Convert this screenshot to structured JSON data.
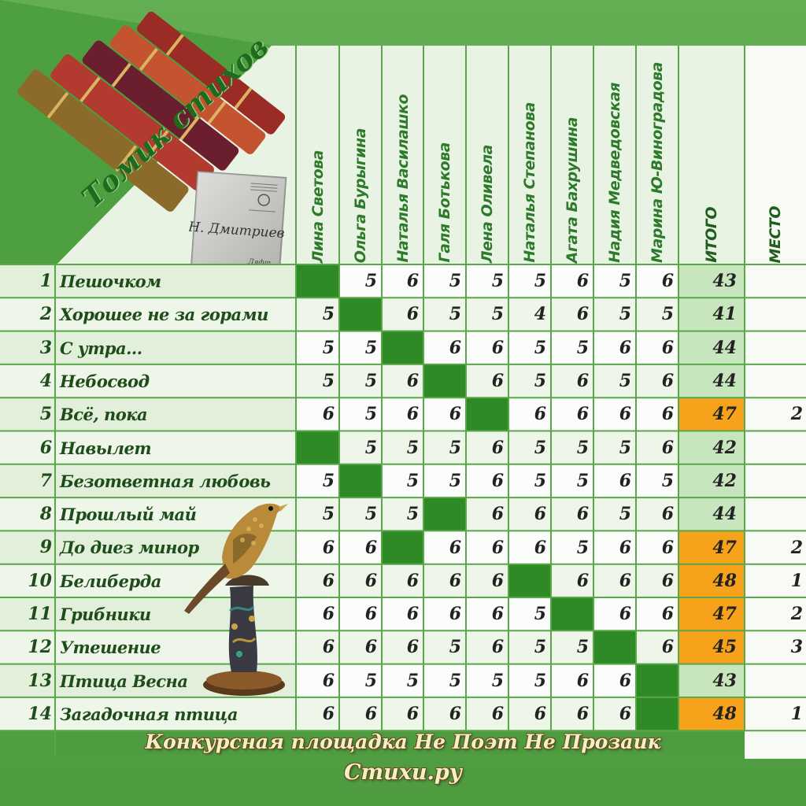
{
  "title": "Томик стихов",
  "book": {
    "author_signature": "Н. Дмитриев",
    "subtitle": "Ляфт"
  },
  "judges": [
    "Лина Светова",
    "Ольга Бурыгина",
    "Наталья Василашко",
    "Галя Ботькова",
    "Лена Оливела",
    "Наталья Степанова",
    "Агата Бахрушина",
    "Надия Медведовская",
    "Марина Ю-Виноградова"
  ],
  "total_header": "ИТОГО",
  "place_header": "МЕСТО",
  "rows": [
    {
      "n": "1",
      "title": "Пешочком",
      "scores": [
        null,
        "5",
        "6",
        "5",
        "5",
        "5",
        "6",
        "5",
        "6"
      ],
      "total": "43",
      "place": ""
    },
    {
      "n": "2",
      "title": "Хорошее не за горами",
      "scores": [
        "5",
        null,
        "6",
        "5",
        "5",
        "4",
        "6",
        "5",
        "5"
      ],
      "total": "41",
      "place": ""
    },
    {
      "n": "3",
      "title": "С утра...",
      "scores": [
        "5",
        "5",
        null,
        "6",
        "6",
        "5",
        "5",
        "6",
        "6"
      ],
      "total": "44",
      "place": ""
    },
    {
      "n": "4",
      "title": "Небосвод",
      "scores": [
        "5",
        "5",
        "6",
        null,
        "6",
        "5",
        "6",
        "5",
        "6"
      ],
      "total": "44",
      "place": ""
    },
    {
      "n": "5",
      "title": "Всё, пока",
      "scores": [
        "6",
        "5",
        "6",
        "6",
        null,
        "6",
        "6",
        "6",
        "6"
      ],
      "total": "47",
      "place": "2"
    },
    {
      "n": "6",
      "title": "Навылет",
      "scores": [
        null,
        "5",
        "5",
        "5",
        "6",
        "5",
        "5",
        "5",
        "6"
      ],
      "total": "42",
      "place": ""
    },
    {
      "n": "7",
      "title": "Безответная любовь",
      "scores": [
        "5",
        null,
        "5",
        "5",
        "6",
        "5",
        "5",
        "6",
        "5"
      ],
      "total": "42",
      "place": ""
    },
    {
      "n": "8",
      "title": "Прошлый май",
      "scores": [
        "5",
        "5",
        "5",
        null,
        "6",
        "6",
        "6",
        "5",
        "6"
      ],
      "total": "44",
      "place": ""
    },
    {
      "n": "9",
      "title": "До диез минор",
      "scores": [
        "6",
        "6",
        null,
        "6",
        "6",
        "6",
        "5",
        "6",
        "6"
      ],
      "total": "47",
      "place": "2"
    },
    {
      "n": "10",
      "title": "Белиберда",
      "scores": [
        "6",
        "6",
        "6",
        "6",
        "6",
        null,
        "6",
        "6",
        "6"
      ],
      "total": "48",
      "place": "1"
    },
    {
      "n": "11",
      "title": "Грибники",
      "scores": [
        "6",
        "6",
        "6",
        "6",
        "6",
        "5",
        null,
        "6",
        "6"
      ],
      "total": "47",
      "place": "2"
    },
    {
      "n": "12",
      "title": "Утешение",
      "scores": [
        "6",
        "6",
        "6",
        "5",
        "6",
        "5",
        "5",
        null,
        "6"
      ],
      "total": "45",
      "place": "3"
    },
    {
      "n": "13",
      "title": "Птица Весна",
      "scores": [
        "6",
        "5",
        "5",
        "5",
        "5",
        "5",
        "6",
        "6",
        null
      ],
      "total": "43",
      "place": ""
    },
    {
      "n": "14",
      "title": "Загадочная птица",
      "scores": [
        "6",
        "6",
        "6",
        "6",
        "6",
        "6",
        "6",
        "6",
        null
      ],
      "total": "48",
      "place": "1"
    }
  ],
  "footer": {
    "line1": "Конкурсная площадка Не Поэт Не Прозаик",
    "line2": "Стихи.ру"
  },
  "colors": {
    "green_block": "#2e8a25",
    "orange": "#f7a21b",
    "total_bg": "#c8e6bd",
    "light_row": "#eef6ea",
    "white_row": "#fbfdfa"
  }
}
